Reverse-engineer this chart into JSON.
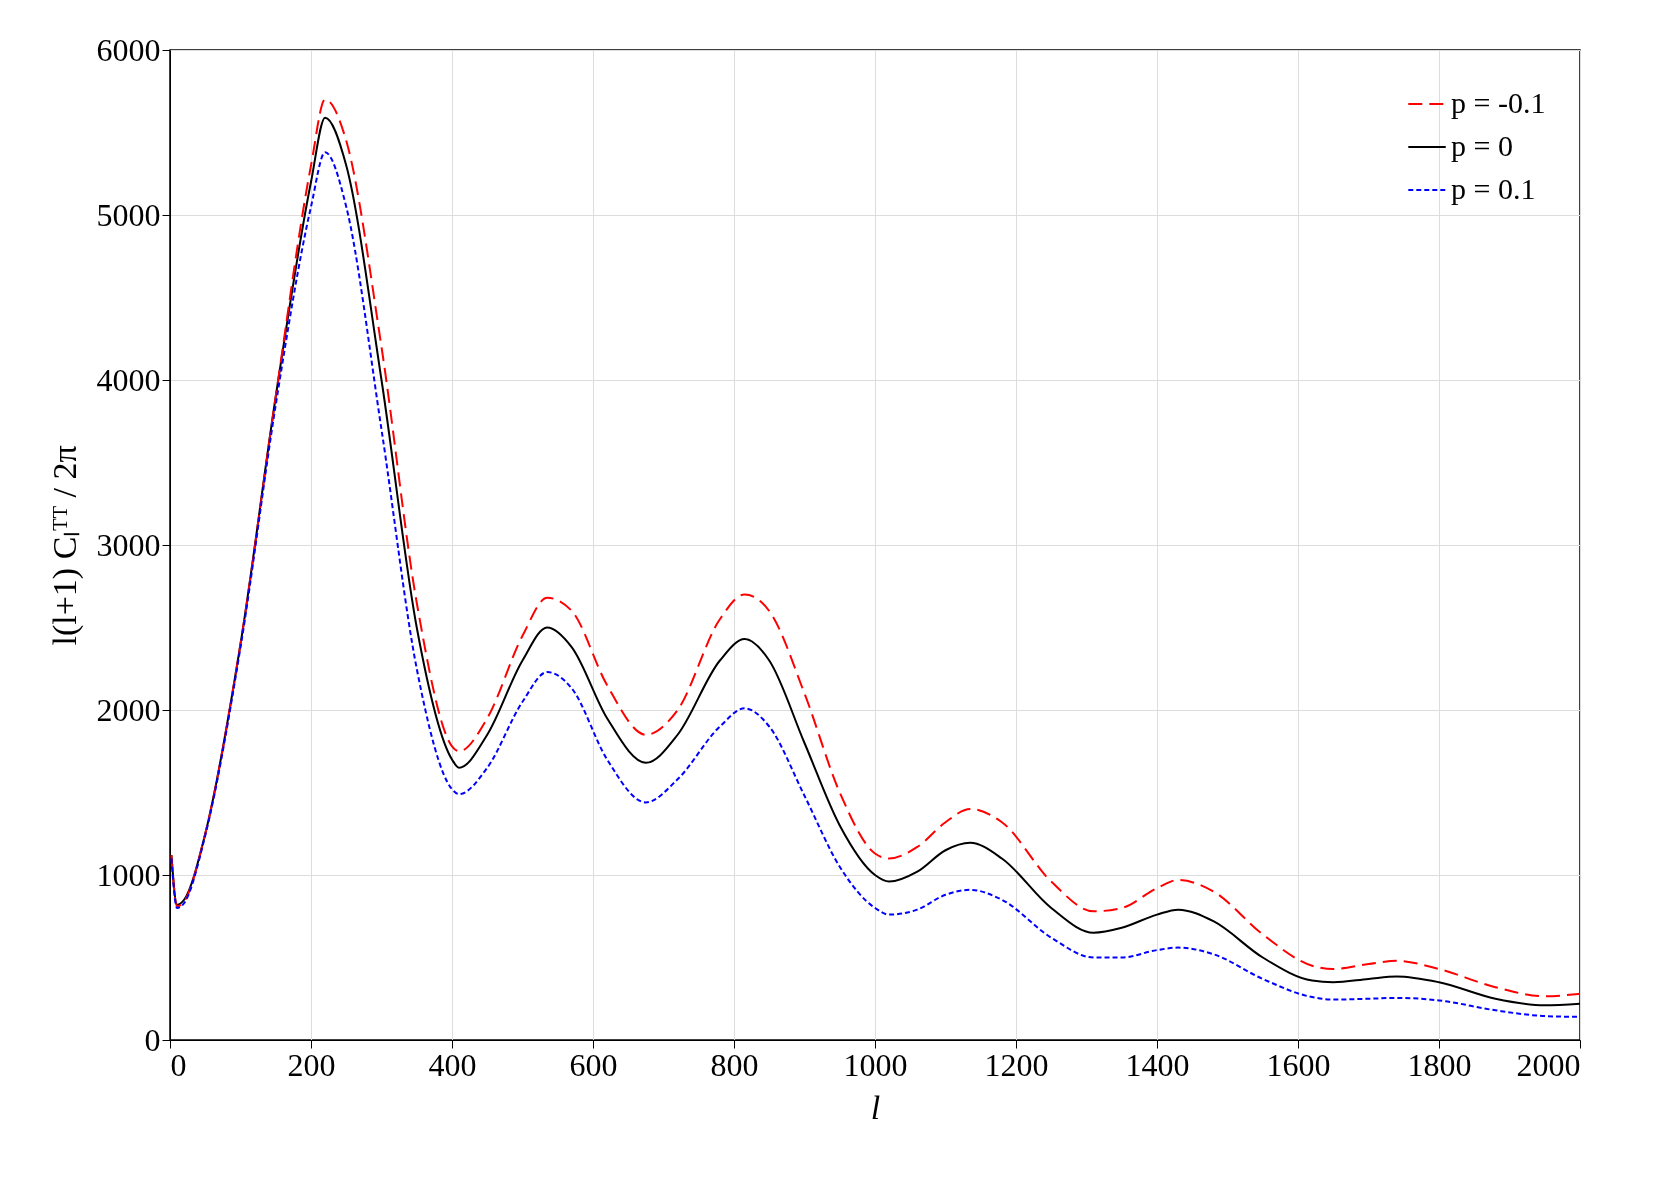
{
  "chart_data": {
    "type": "line",
    "xlabel": "l",
    "ylabel": "l(l+1) Cₗᵀᵀ / 2π",
    "x": [
      2,
      10,
      20,
      50,
      100,
      150,
      200,
      220,
      250,
      300,
      350,
      400,
      410,
      450,
      500,
      535,
      570,
      620,
      675,
      720,
      780,
      815,
      850,
      900,
      950,
      1000,
      1020,
      1060,
      1100,
      1135,
      1180,
      1250,
      1310,
      1350,
      1400,
      1430,
      1480,
      1550,
      1620,
      1650,
      1700,
      1740,
      1800,
      1880,
      1950,
      2000
    ],
    "series": [
      {
        "name": "p = -0.1",
        "color": "#ff0000",
        "line_style": "dashed",
        "values": [
          1120,
          810,
          840,
          1250,
          2400,
          3900,
          5300,
          5700,
          5450,
          4200,
          2650,
          1780,
          1750,
          1950,
          2450,
          2680,
          2600,
          2150,
          1850,
          2000,
          2550,
          2700,
          2600,
          2100,
          1500,
          1130,
          1100,
          1170,
          1320,
          1400,
          1320,
          960,
          780,
          800,
          920,
          970,
          900,
          640,
          450,
          430,
          460,
          480,
          430,
          320,
          265,
          280
        ]
      },
      {
        "name": "p = 0",
        "color": "#000000",
        "line_style": "solid",
        "values": [
          1120,
          820,
          850,
          1250,
          2400,
          3900,
          5200,
          5590,
          5300,
          4000,
          2500,
          1700,
          1650,
          1850,
          2300,
          2500,
          2380,
          1950,
          1680,
          1850,
          2300,
          2430,
          2300,
          1800,
          1300,
          1000,
          960,
          1020,
          1150,
          1195,
          1100,
          800,
          650,
          680,
          760,
          790,
          720,
          500,
          360,
          350,
          370,
          385,
          350,
          250,
          210,
          220
        ]
      },
      {
        "name": "p = 0.1",
        "color": "#0000ff",
        "line_style": "dotted",
        "values": [
          1100,
          800,
          830,
          1240,
          2380,
          3850,
          5050,
          5380,
          5050,
          3700,
          2250,
          1520,
          1490,
          1650,
          2050,
          2230,
          2130,
          1700,
          1440,
          1580,
          1900,
          2010,
          1900,
          1480,
          1050,
          800,
          760,
          790,
          880,
          910,
          850,
          620,
          500,
          500,
          545,
          560,
          520,
          370,
          260,
          245,
          250,
          255,
          240,
          180,
          145,
          140
        ]
      }
    ],
    "xlim": [
      0,
      2000
    ],
    "xticks": [
      0,
      200,
      400,
      600,
      800,
      1000,
      1200,
      1400,
      1600,
      1800,
      2000
    ],
    "ylim": [
      0,
      6000
    ],
    "yticks": [
      0,
      1000,
      2000,
      3000,
      4000,
      5000,
      6000
    ],
    "grid": true,
    "legend": "top right"
  }
}
